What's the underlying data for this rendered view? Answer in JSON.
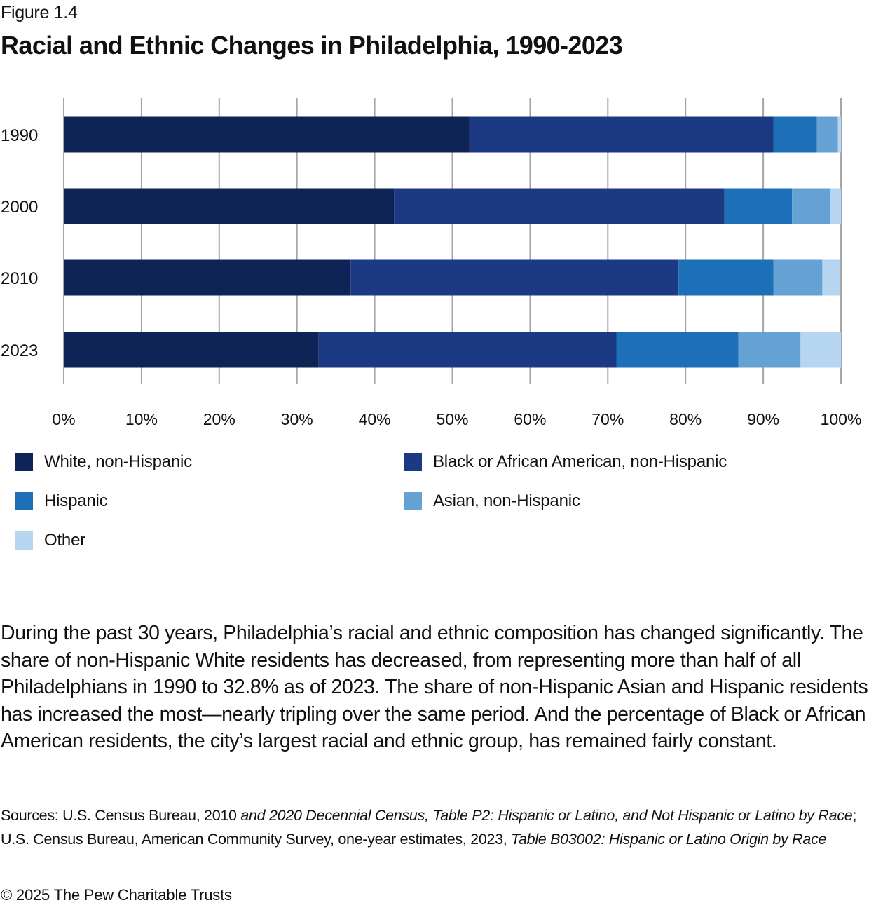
{
  "figure_label": "Figure 1.4",
  "title": "Racial and Ethnic Changes in Philadelphia, 1990-2023",
  "chart_data": {
    "type": "bar",
    "orientation": "horizontal",
    "stacked": true,
    "title": "Racial and Ethnic Changes in Philadelphia, 1990-2023",
    "xlabel": "",
    "ylabel": "",
    "categories": [
      "1990",
      "2000",
      "2010",
      "2023"
    ],
    "series": [
      {
        "name": "White, non-Hispanic",
        "color": "#0e2456",
        "values": [
          52.2,
          42.5,
          36.9,
          32.8
        ]
      },
      {
        "name": "Black or African American, non-Hispanic",
        "color": "#1c3a83",
        "values": [
          39.1,
          42.5,
          42.2,
          38.3
        ]
      },
      {
        "name": "Hispanic",
        "color": "#1d70b7",
        "values": [
          5.6,
          8.7,
          12.2,
          15.7
        ]
      },
      {
        "name": "Asian, non-Hispanic",
        "color": "#65a1d3",
        "values": [
          2.7,
          4.9,
          6.3,
          8.0
        ]
      },
      {
        "name": "Other",
        "color": "#b6d5f0",
        "values": [
          0.4,
          1.4,
          2.3,
          5.2
        ]
      }
    ],
    "xlim": [
      0,
      100
    ],
    "x_ticks": [
      "0%",
      "10%",
      "20%",
      "30%",
      "40%",
      "50%",
      "60%",
      "70%",
      "80%",
      "90%",
      "100%"
    ],
    "grid": true,
    "grid_color": "#a6a6a6",
    "legend_position": "bottom"
  },
  "legend": [
    {
      "label": "White, non-Hispanic",
      "color": "#0e2456"
    },
    {
      "label": "Black or African American, non-Hispanic",
      "color": "#1c3a83"
    },
    {
      "label": "Hispanic",
      "color": "#1d70b7"
    },
    {
      "label": "Asian, non-Hispanic",
      "color": "#65a1d3"
    },
    {
      "label": "Other",
      "color": "#b6d5f0"
    }
  ],
  "body_text": "During the past 30 years, Philadelphia’s racial and ethnic composition has changed significantly. The share of non-Hispanic White residents has decreased, from representing more than half of all Philadelphians in 1990 to 32.8% as of 2023. The share of non-Hispanic Asian and Hispanic residents has increased the most—nearly tripling over the same period. And the percentage of Black or African American residents, the city’s largest racial and ethnic group, has remained fairly constant.",
  "sources": {
    "prefix": "Sources: U.S. Census Bureau, 2010 ",
    "italic1": "and 2020 Decennial Census, Table P2: Hispanic or Latino, and Not Hispanic or Latino by Race",
    "middle": "; U.S. Census Bureau, American Community Survey, one-year estimates, 2023, ",
    "italic2": "Table B03002: Hispanic or Latino Origin by Race"
  },
  "copyright": "© 2025 The Pew Charitable Trusts"
}
